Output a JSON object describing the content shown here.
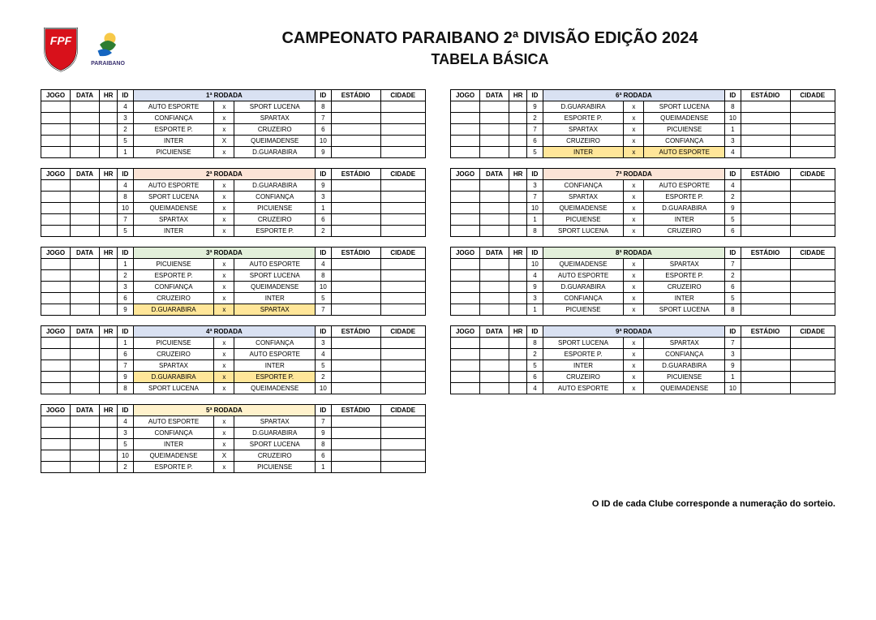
{
  "title_main": "CAMPEONATO PARAIBANO 2ª DIVISÃO EDIÇÃO 2024",
  "title_sub": "TABELA BÁSICA",
  "footer_note": "O ID de cada Clube corresponde a numeração do sorteio.",
  "headers": {
    "jogo": "JOGO",
    "data": "DATA",
    "hr": "HR",
    "id": "ID",
    "estadio": "ESTÁDIO",
    "cidade": "CIDADE"
  },
  "colors": {
    "bg_white": "#ffffff",
    "border": "#000000",
    "hi_yellow": "#ffe699",
    "hdr_blue": "#d9e1f2",
    "hdr_pink": "#fce4d6",
    "hdr_green": "#e2efda",
    "hdr_yellow": "#fff2cc"
  },
  "left_rounds": [
    {
      "title": "1ª RODADA",
      "header_bg": "#d9e1f2",
      "rows": [
        {
          "id1": "4",
          "home": "AUTO ESPORTE",
          "x": "x",
          "away": "SPORT LUCENA",
          "id2": "8"
        },
        {
          "id1": "3",
          "home": "CONFIANÇA",
          "x": "x",
          "away": "SPARTAX",
          "id2": "7"
        },
        {
          "id1": "2",
          "home": "ESPORTE P.",
          "x": "x",
          "away": "CRUZEIRO",
          "id2": "6"
        },
        {
          "id1": "5",
          "home": "INTER",
          "x": "X",
          "away": "QUEIMADENSE",
          "id2": "10"
        },
        {
          "id1": "1",
          "home": "PICUIENSE",
          "x": "x",
          "away": "D.GUARABIRA",
          "id2": "9"
        }
      ]
    },
    {
      "title": "2ª RODADA",
      "header_bg": "#fce4d6",
      "rows": [
        {
          "id1": "4",
          "home": "AUTO ESPORTE",
          "x": "x",
          "away": "D.GUARABIRA",
          "id2": "9"
        },
        {
          "id1": "8",
          "home": "SPORT LUCENA",
          "x": "x",
          "away": "CONFIANÇA",
          "id2": "3"
        },
        {
          "id1": "10",
          "home": "QUEIMADENSE",
          "x": "x",
          "away": "PICUIENSE",
          "id2": "1"
        },
        {
          "id1": "7",
          "home": "SPARTAX",
          "x": "x",
          "away": "CRUZEIRO",
          "id2": "6"
        },
        {
          "id1": "5",
          "home": "INTER",
          "x": "x",
          "away": "ESPORTE P.",
          "id2": "2"
        }
      ]
    },
    {
      "title": "3ª RODADA",
      "header_bg": "#e2efda",
      "rows": [
        {
          "id1": "1",
          "home": "PICUIENSE",
          "x": "x",
          "away": "AUTO ESPORTE",
          "id2": "4"
        },
        {
          "id1": "2",
          "home": "ESPORTE P.",
          "x": "x",
          "away": "SPORT LUCENA",
          "id2": "8"
        },
        {
          "id1": "3",
          "home": "CONFIANÇA",
          "x": "x",
          "away": "QUEIMADENSE",
          "id2": "10"
        },
        {
          "id1": "6",
          "home": "CRUZEIRO",
          "x": "x",
          "away": "INTER",
          "id2": "5"
        },
        {
          "id1": "9",
          "home": "D.GUARABIRA",
          "x": "x",
          "away": "SPARTAX",
          "id2": "7",
          "hi": true
        }
      ]
    },
    {
      "title": "4ª RODADA",
      "header_bg": "#d9e1f2",
      "rows": [
        {
          "id1": "1",
          "home": "PICUIENSE",
          "x": "x",
          "away": "CONFIANÇA",
          "id2": "3"
        },
        {
          "id1": "6",
          "home": "CRUZEIRO",
          "x": "x",
          "away": "AUTO ESPORTE",
          "id2": "4"
        },
        {
          "id1": "7",
          "home": "SPARTAX",
          "x": "x",
          "away": "INTER",
          "id2": "5"
        },
        {
          "id1": "9",
          "home": "D.GUARABIRA",
          "x": "x",
          "away": "ESPORTE P.",
          "id2": "2",
          "hi": true
        },
        {
          "id1": "8",
          "home": "SPORT LUCENA",
          "x": "x",
          "away": "QUEIMADENSE",
          "id2": "10"
        }
      ]
    },
    {
      "title": "5ª RODADA",
      "header_bg": "#fff2cc",
      "rows": [
        {
          "id1": "4",
          "home": "AUTO ESPORTE",
          "x": "x",
          "away": "SPARTAX",
          "id2": "7"
        },
        {
          "id1": "3",
          "home": "CONFIANÇA",
          "x": "x",
          "away": "D.GUARABIRA",
          "id2": "9"
        },
        {
          "id1": "5",
          "home": "INTER",
          "x": "x",
          "away": "SPORT LUCENA",
          "id2": "8"
        },
        {
          "id1": "10",
          "home": "QUEIMADENSE",
          "x": "X",
          "away": "CRUZEIRO",
          "id2": "6"
        },
        {
          "id1": "2",
          "home": "ESPORTE P.",
          "x": "x",
          "away": "PICUIENSE",
          "id2": "1"
        }
      ]
    }
  ],
  "right_rounds": [
    {
      "title": "6ª RODADA",
      "header_bg": "#d9e1f2",
      "rows": [
        {
          "id1": "9",
          "home": "D.GUARABIRA",
          "x": "x",
          "away": "SPORT LUCENA",
          "id2": "8"
        },
        {
          "id1": "2",
          "home": "ESPORTE P.",
          "x": "x",
          "away": "QUEIMADENSE",
          "id2": "10"
        },
        {
          "id1": "7",
          "home": "SPARTAX",
          "x": "x",
          "away": "PICUIENSE",
          "id2": "1"
        },
        {
          "id1": "6",
          "home": "CRUZEIRO",
          "x": "x",
          "away": "CONFIANÇA",
          "id2": "3"
        },
        {
          "id1": "5",
          "home": "INTER",
          "x": "x",
          "away": "AUTO ESPORTE",
          "id2": "4",
          "hi": true
        }
      ]
    },
    {
      "title": "7ª RODADA",
      "header_bg": "#fce4d6",
      "rows": [
        {
          "id1": "3",
          "home": "CONFIANÇA",
          "x": "x",
          "away": "AUTO ESPORTE",
          "id2": "4"
        },
        {
          "id1": "7",
          "home": "SPARTAX",
          "x": "x",
          "away": "ESPORTE P.",
          "id2": "2"
        },
        {
          "id1": "10",
          "home": "QUEIMADENSE",
          "x": "x",
          "away": "D.GUARABIRA",
          "id2": "9"
        },
        {
          "id1": "1",
          "home": "PICUIENSE",
          "x": "x",
          "away": "INTER",
          "id2": "5"
        },
        {
          "id1": "8",
          "home": "SPORT LUCENA",
          "x": "x",
          "away": "CRUZEIRO",
          "id2": "6"
        }
      ]
    },
    {
      "title": "8ª RODADA",
      "header_bg": "#e2efda",
      "rows": [
        {
          "id1": "10",
          "home": "QUEIMADENSE",
          "x": "x",
          "away": "SPARTAX",
          "id2": "7"
        },
        {
          "id1": "4",
          "home": "AUTO ESPORTE",
          "x": "x",
          "away": "ESPORTE P.",
          "id2": "2"
        },
        {
          "id1": "9",
          "home": "D.GUARABIRA",
          "x": "x",
          "away": "CRUZEIRO",
          "id2": "6"
        },
        {
          "id1": "3",
          "home": "CONFIANÇA",
          "x": "x",
          "away": "INTER",
          "id2": "5"
        },
        {
          "id1": "1",
          "home": "PICUIENSE",
          "x": "x",
          "away": "SPORT LUCENA",
          "id2": "8"
        }
      ]
    },
    {
      "title": "9ª RODADA",
      "header_bg": "#d9e1f2",
      "rows": [
        {
          "id1": "8",
          "home": "SPORT LUCENA",
          "x": "x",
          "away": "SPARTAX",
          "id2": "7"
        },
        {
          "id1": "2",
          "home": "ESPORTE P.",
          "x": "x",
          "away": "CONFIANÇA",
          "id2": "3"
        },
        {
          "id1": "5",
          "home": "INTER",
          "x": "x",
          "away": "D.GUARABIRA",
          "id2": "9"
        },
        {
          "id1": "6",
          "home": "CRUZEIRO",
          "x": "x",
          "away": "PICUIENSE",
          "id2": "1"
        },
        {
          "id1": "4",
          "home": "AUTO ESPORTE",
          "x": "x",
          "away": "QUEIMADENSE",
          "id2": "10"
        }
      ]
    }
  ]
}
